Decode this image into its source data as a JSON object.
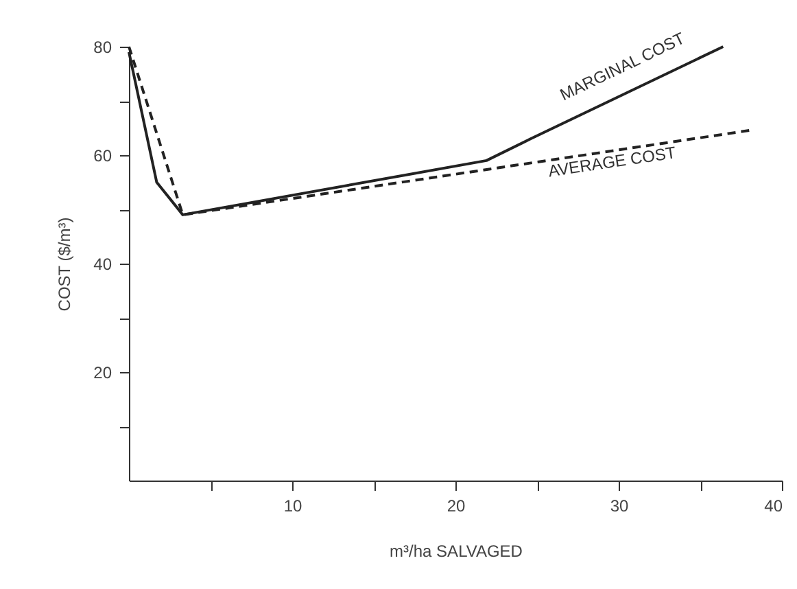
{
  "chart_data": {
    "type": "line",
    "xlabel": "m³/ha SALVAGED",
    "ylabel": "COST ($/m³)",
    "series": [
      {
        "name": "MARGINAL COST",
        "color": "#222222",
        "line_style": "solid",
        "x": [
          0,
          1.7,
          3.3,
          21.9,
          24.6,
          36.4
        ],
        "values": [
          79,
          55,
          49,
          59,
          63,
          80
        ]
      },
      {
        "name": "AVERAGE COST",
        "color": "#222222",
        "line_style": "dashed",
        "x": [
          0,
          3.3,
          38.1
        ],
        "values": [
          80,
          49,
          64.6
        ]
      }
    ],
    "xlim": [
      0,
      40
    ],
    "ylim": [
      0,
      80
    ],
    "xticks": [
      {
        "value": 5,
        "label": null
      },
      10,
      {
        "value": 15,
        "label": null
      },
      20,
      {
        "value": 25,
        "label": null
      },
      30,
      {
        "value": 35,
        "label": null
      },
      40
    ],
    "yticks": [
      {
        "value": 10,
        "label": null
      },
      20,
      {
        "value": 30,
        "label": null
      },
      40,
      {
        "value": 50,
        "label": null
      },
      60,
      {
        "value": 70,
        "label": null
      },
      80
    ],
    "grid": false,
    "marker": "none"
  }
}
